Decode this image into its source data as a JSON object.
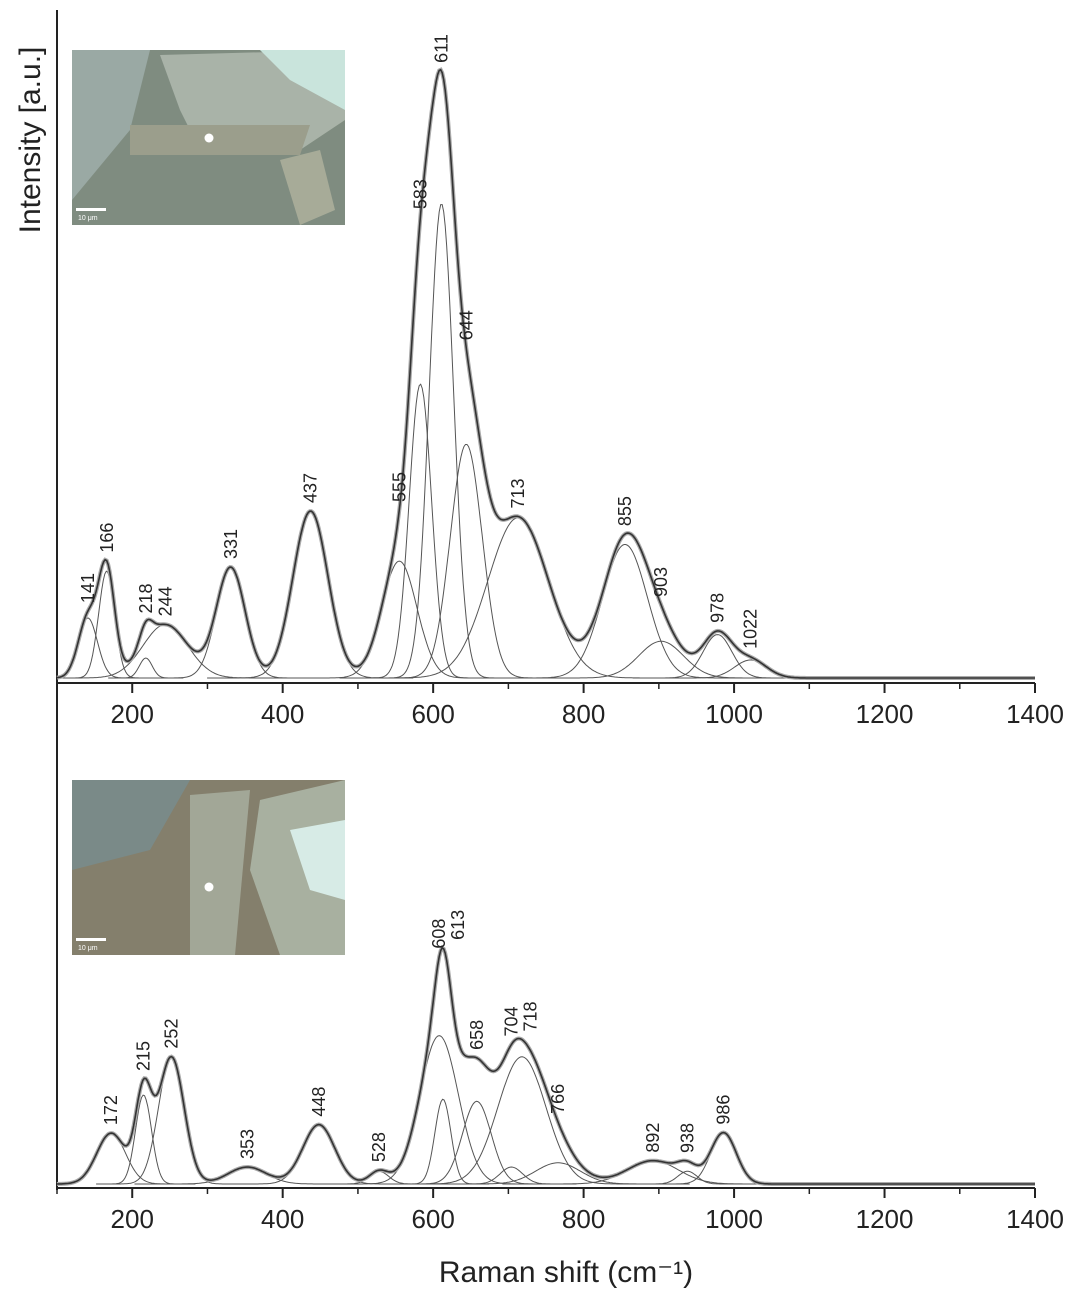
{
  "chart_data": [
    {
      "type": "peak-fit",
      "y_label": "Intensity [a.u.]",
      "inset_scale": "10 μm",
      "xlim": [
        100,
        1400
      ],
      "xticks": [
        200,
        400,
        600,
        800,
        1000,
        1200,
        1400
      ],
      "xminor_ticks": [
        100,
        300,
        500,
        700,
        900,
        1100,
        1300
      ],
      "ylim": [
        0,
        100
      ],
      "peaks": [
        {
          "center": 141,
          "height": 9,
          "fwhm": 30
        },
        {
          "center": 166,
          "height": 16,
          "fwhm": 25
        },
        {
          "center": 218,
          "height": 3,
          "fwhm": 20
        },
        {
          "center": 244,
          "height": 8,
          "fwhm": 70
        },
        {
          "center": 331,
          "height": 16.5,
          "fwhm": 45
        },
        {
          "center": 437,
          "height": 25,
          "fwhm": 55
        },
        {
          "center": 555,
          "height": 17.5,
          "fwhm": 55
        },
        {
          "center": 583,
          "height": 44,
          "fwhm": 35
        },
        {
          "center": 611,
          "height": 71,
          "fwhm": 38
        },
        {
          "center": 644,
          "height": 35,
          "fwhm": 50
        },
        {
          "center": 713,
          "height": 24,
          "fwhm": 95
        },
        {
          "center": 855,
          "height": 20,
          "fwhm": 70
        },
        {
          "center": 903,
          "height": 5.5,
          "fwhm": 70
        },
        {
          "center": 978,
          "height": 6.5,
          "fwhm": 45
        },
        {
          "center": 1022,
          "height": 2.7,
          "fwhm": 50
        }
      ]
    },
    {
      "type": "peak-fit",
      "x_label": "Raman shift (cm⁻¹)",
      "inset_scale": "10 μm",
      "xlim": [
        100,
        1400
      ],
      "xticks": [
        200,
        400,
        600,
        800,
        1000,
        1200,
        1400
      ],
      "xminor_ticks": [
        100,
        300,
        500,
        700,
        900,
        1100,
        1300
      ],
      "ylim": [
        0,
        100
      ],
      "peaks": [
        {
          "center": 172,
          "height": 12,
          "fwhm": 45
        },
        {
          "center": 215,
          "height": 21,
          "fwhm": 25
        },
        {
          "center": 252,
          "height": 30,
          "fwhm": 40
        },
        {
          "center": 353,
          "height": 4,
          "fwhm": 60
        },
        {
          "center": 448,
          "height": 14,
          "fwhm": 50
        },
        {
          "center": 528,
          "height": 3,
          "fwhm": 30
        },
        {
          "center": 608,
          "height": 35,
          "fwhm": 60
        },
        {
          "center": 613,
          "height": 20,
          "fwhm": 25
        },
        {
          "center": 658,
          "height": 19.5,
          "fwhm": 45
        },
        {
          "center": 704,
          "height": 4,
          "fwhm": 35
        },
        {
          "center": 718,
          "height": 30,
          "fwhm": 75
        },
        {
          "center": 766,
          "height": 5,
          "fwhm": 70
        },
        {
          "center": 892,
          "height": 5.5,
          "fwhm": 80
        },
        {
          "center": 938,
          "height": 3,
          "fwhm": 30
        },
        {
          "center": 986,
          "height": 12,
          "fwhm": 40
        }
      ]
    }
  ]
}
